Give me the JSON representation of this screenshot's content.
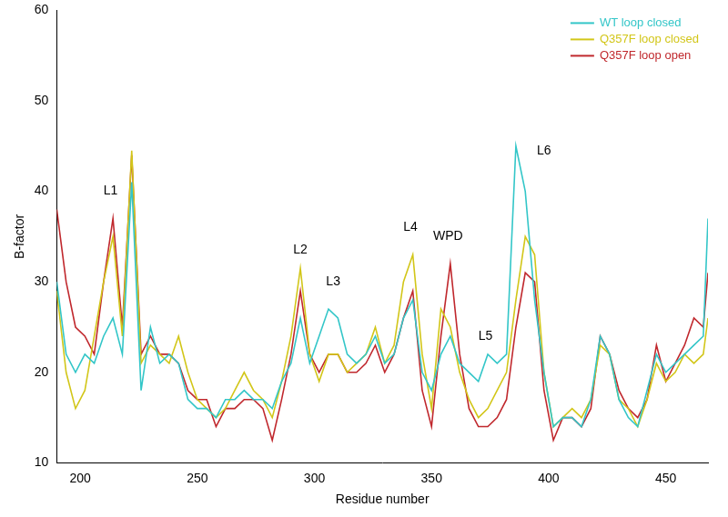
{
  "chart_data": {
    "type": "line",
    "x_label": "Residue number",
    "y_label": "B-factor",
    "x": [
      190,
      194,
      198,
      202,
      206,
      210,
      214,
      218,
      222,
      226,
      230,
      234,
      238,
      242,
      246,
      250,
      254,
      258,
      262,
      266,
      270,
      274,
      278,
      282,
      286,
      290,
      294,
      298,
      302,
      306,
      310,
      314,
      318,
      322,
      326,
      330,
      334,
      338,
      342,
      346,
      350,
      354,
      358,
      362,
      366,
      370,
      374,
      378,
      382,
      386,
      390,
      394,
      398,
      402,
      406,
      410,
      414,
      418,
      422,
      426,
      430,
      434,
      438,
      442,
      446,
      450,
      454,
      458,
      462,
      466,
      468
    ],
    "series": [
      {
        "name": "WT loop closed",
        "color": "#33c6c8",
        "values": [
          30,
          22,
          20,
          22,
          21,
          24,
          26,
          22,
          41,
          18,
          25,
          21,
          22,
          21,
          17,
          16,
          16,
          15,
          17,
          17,
          18,
          17,
          17,
          16,
          19,
          21,
          26,
          21,
          24,
          27,
          26,
          22,
          21,
          22,
          24,
          21,
          22,
          26,
          28,
          20,
          18,
          22,
          24,
          21,
          20,
          19,
          22,
          21,
          22,
          45,
          40,
          28,
          20,
          14,
          15,
          15,
          14,
          17,
          24,
          22,
          17,
          15,
          14,
          18,
          22,
          20,
          21,
          22,
          23,
          24,
          37
        ]
      },
      {
        "name": "Q357F loop closed",
        "color": "#d2c619",
        "values": [
          29,
          20,
          16,
          18,
          24,
          30,
          35,
          24,
          44.5,
          21,
          23,
          22,
          21,
          24,
          20,
          17,
          16,
          15,
          16,
          18,
          20,
          18,
          17,
          15,
          19,
          24,
          31.5,
          22,
          19,
          22,
          22,
          20,
          21,
          22,
          25,
          21,
          23,
          30,
          33,
          22,
          16,
          27,
          25,
          20,
          17,
          15,
          16,
          18,
          20,
          28,
          35,
          33,
          20,
          14,
          15,
          16,
          15,
          17,
          23,
          22,
          17,
          16,
          14,
          17,
          21,
          19,
          20,
          22,
          21,
          22,
          26
        ]
      },
      {
        "name": "Q357F loop open",
        "color": "#c0282d",
        "values": [
          38,
          30,
          25,
          24,
          22,
          30,
          37,
          25,
          44,
          22,
          24,
          22,
          22,
          21,
          18,
          17,
          17,
          14,
          16,
          16,
          17,
          17,
          16,
          12.5,
          17,
          22,
          29,
          22,
          20,
          22,
          22,
          20,
          20,
          21,
          23,
          20,
          22,
          26,
          29,
          18,
          14,
          24,
          32,
          22,
          16,
          14,
          14,
          15,
          17,
          25,
          31,
          30,
          18,
          12.5,
          15,
          15,
          14,
          16,
          24,
          22,
          18,
          16,
          15,
          17,
          23,
          19,
          21,
          23,
          26,
          25,
          31
        ]
      }
    ],
    "annotations": [
      {
        "text": "L1",
        "x": 213,
        "y": 40
      },
      {
        "text": "L2",
        "x": 294,
        "y": 33.5
      },
      {
        "text": "L3",
        "x": 308,
        "y": 30
      },
      {
        "text": "L4",
        "x": 341,
        "y": 36
      },
      {
        "text": "WPD",
        "x": 357,
        "y": 35
      },
      {
        "text": "L5",
        "x": 373,
        "y": 24
      },
      {
        "text": "L6",
        "x": 398,
        "y": 44.5
      }
    ],
    "xlim": [
      190,
      468
    ],
    "xticks": [
      200,
      250,
      300,
      350,
      400,
      450
    ],
    "ylim": [
      10,
      60
    ],
    "yticks": [
      10,
      20,
      30,
      40,
      50,
      60
    ],
    "grid": false,
    "legend": "upper right"
  }
}
